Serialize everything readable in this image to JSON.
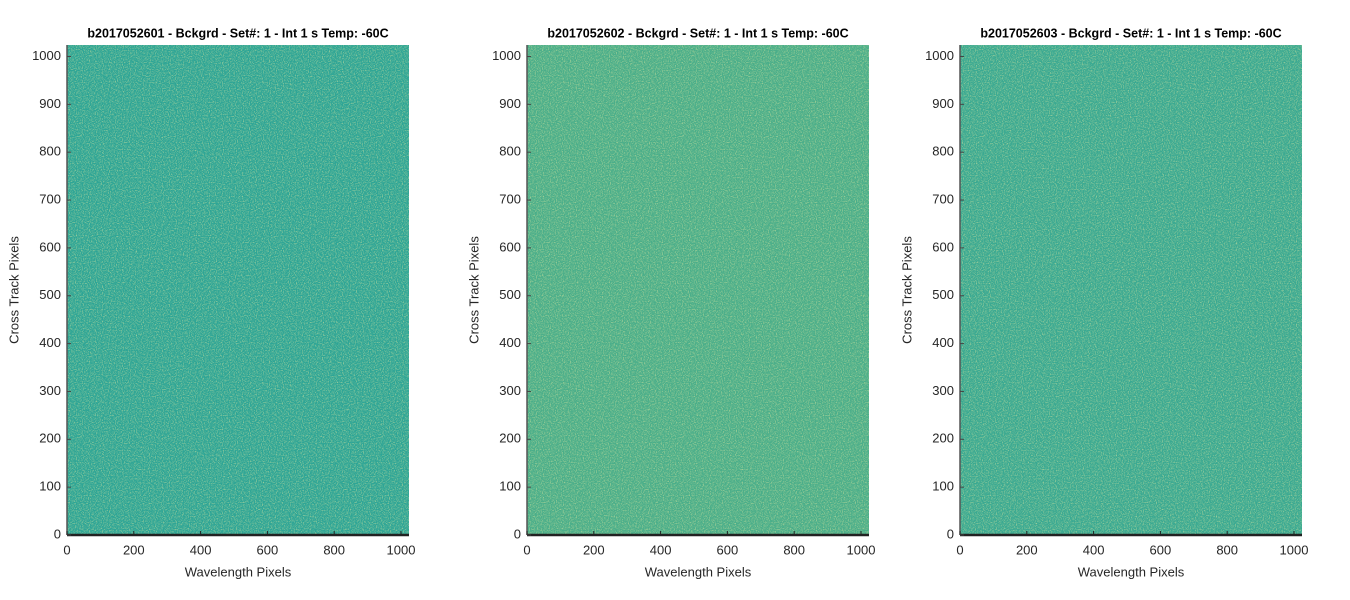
{
  "chart_data": [
    {
      "type": "image",
      "title": "b2017052601 - Bckgrd - Set#: 1 - Int 1 s Temp: -60C",
      "xlabel": "Wavelength Pixels",
      "ylabel": "Cross Track Pixels",
      "xlim": [
        0,
        1024
      ],
      "ylim": [
        0,
        1024
      ],
      "xticks": [
        0,
        200,
        400,
        600,
        800,
        1000
      ],
      "yticks": [
        0,
        100,
        200,
        300,
        400,
        500,
        600,
        700,
        800,
        900,
        1000
      ],
      "color": "#2ea596"
    },
    {
      "type": "image",
      "title": "b2017052602 - Bckgrd - Set#: 1 - Int 1 s Temp: -60C",
      "xlabel": "Wavelength Pixels",
      "ylabel": "Cross Track Pixels",
      "xlim": [
        0,
        1024
      ],
      "ylim": [
        0,
        1024
      ],
      "xticks": [
        0,
        200,
        400,
        600,
        800,
        1000
      ],
      "yticks": [
        0,
        100,
        200,
        300,
        400,
        500,
        600,
        700,
        800,
        900,
        1000
      ],
      "color": "#4aae8a"
    },
    {
      "type": "image",
      "title": "b2017052603 - Bckgrd - Set#: 1 - Int 1 s Temp: -60C",
      "xlabel": "Wavelength Pixels",
      "ylabel": "Cross Track Pixels",
      "xlim": [
        0,
        1024
      ],
      "ylim": [
        0,
        1024
      ],
      "xticks": [
        0,
        200,
        400,
        600,
        800,
        1000
      ],
      "yticks": [
        0,
        100,
        200,
        300,
        400,
        500,
        600,
        700,
        800,
        900,
        1000
      ],
      "color": "#3aa992"
    }
  ]
}
